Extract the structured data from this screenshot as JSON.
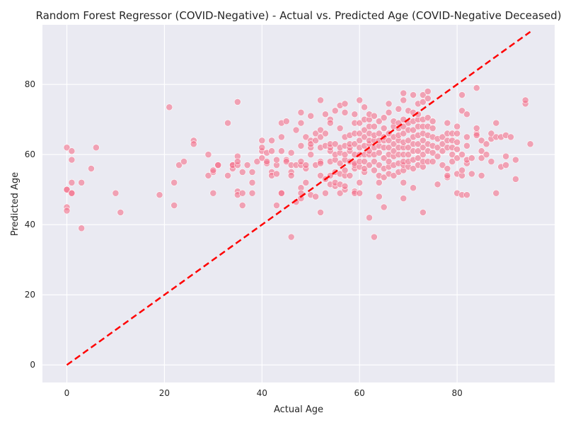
{
  "chart_data": {
    "type": "scatter",
    "title": "Random Forest Regressor (COVID-Negative) - Actual vs. Predicted Age (COVID-Negative Deceased)",
    "xlabel": "Actual Age",
    "ylabel": "Predicted Age",
    "xlim": [
      -5,
      100
    ],
    "ylim": [
      -5,
      97
    ],
    "xticks": [
      0,
      20,
      40,
      60,
      80
    ],
    "yticks": [
      0,
      20,
      40,
      60,
      80
    ],
    "grid": true,
    "background": "#eaeaf2",
    "point_color": "#f4708a",
    "reference_line": {
      "x": [
        0,
        95
      ],
      "y": [
        0,
        95
      ],
      "color": "#ff0000",
      "style": "dashed"
    },
    "points": [
      [
        0,
        62
      ],
      [
        0,
        50
      ],
      [
        0,
        50
      ],
      [
        0,
        45
      ],
      [
        0,
        44
      ],
      [
        1,
        61
      ],
      [
        1,
        58.5
      ],
      [
        1,
        52
      ],
      [
        1,
        49
      ],
      [
        1,
        49
      ],
      [
        3,
        52
      ],
      [
        3,
        39
      ],
      [
        5,
        56
      ],
      [
        6,
        62
      ],
      [
        10,
        49
      ],
      [
        11,
        43.5
      ],
      [
        19,
        48.5
      ],
      [
        21,
        73.5
      ],
      [
        22,
        52
      ],
      [
        22,
        45.5
      ],
      [
        23,
        57
      ],
      [
        24,
        58
      ],
      [
        26,
        64
      ],
      [
        26,
        63
      ],
      [
        29,
        54
      ],
      [
        29,
        60
      ],
      [
        30,
        55
      ],
      [
        30,
        49
      ],
      [
        30,
        55.5
      ],
      [
        31,
        57
      ],
      [
        31,
        57
      ],
      [
        33,
        69
      ],
      [
        33,
        54
      ],
      [
        34,
        57
      ],
      [
        34,
        56
      ],
      [
        34,
        57
      ],
      [
        35,
        75
      ],
      [
        35,
        59.5
      ],
      [
        35,
        49.5
      ],
      [
        35,
        48.5
      ],
      [
        35,
        57
      ],
      [
        35,
        58
      ],
      [
        36,
        45.5
      ],
      [
        36,
        55
      ],
      [
        36,
        49
      ],
      [
        37,
        57
      ],
      [
        38,
        52
      ],
      [
        38,
        49
      ],
      [
        38,
        55
      ],
      [
        39,
        58
      ],
      [
        40,
        59
      ],
      [
        40,
        61
      ],
      [
        40,
        64
      ],
      [
        40,
        62
      ],
      [
        41,
        57.5
      ],
      [
        41,
        58
      ],
      [
        41,
        60.5
      ],
      [
        42,
        61
      ],
      [
        42,
        55
      ],
      [
        42,
        54
      ],
      [
        42,
        64
      ],
      [
        43,
        45.5
      ],
      [
        43,
        54.5
      ],
      [
        43,
        57
      ],
      [
        43,
        58.5
      ],
      [
        44,
        49
      ],
      [
        44,
        49
      ],
      [
        44,
        61
      ],
      [
        44,
        65
      ],
      [
        44,
        69
      ],
      [
        45,
        58.5
      ],
      [
        45,
        69.5
      ],
      [
        45,
        58
      ],
      [
        46,
        36.5
      ],
      [
        46,
        55
      ],
      [
        46,
        57
      ],
      [
        46,
        60.5
      ],
      [
        46,
        54
      ],
      [
        47,
        67
      ],
      [
        47,
        57
      ],
      [
        47,
        46.5
      ],
      [
        48,
        57
      ],
      [
        48,
        58
      ],
      [
        48,
        47.5
      ],
      [
        48,
        50.5
      ],
      [
        48,
        49
      ],
      [
        48,
        62.5
      ],
      [
        48,
        69
      ],
      [
        48,
        72
      ],
      [
        49,
        56
      ],
      [
        49,
        65
      ],
      [
        49,
        52
      ],
      [
        49,
        57
      ],
      [
        50,
        71
      ],
      [
        50,
        62
      ],
      [
        50,
        48.5
      ],
      [
        50,
        64
      ],
      [
        50,
        63
      ],
      [
        50,
        60
      ],
      [
        51,
        57
      ],
      [
        51,
        64
      ],
      [
        51,
        66
      ],
      [
        51,
        48
      ],
      [
        52,
        54
      ],
      [
        52,
        43.5
      ],
      [
        52,
        58
      ],
      [
        52,
        62
      ],
      [
        52,
        67
      ],
      [
        52,
        65
      ],
      [
        52,
        75.5
      ],
      [
        52,
        57.5
      ],
      [
        53,
        66
      ],
      [
        53,
        71.5
      ],
      [
        53,
        62.5
      ],
      [
        53,
        49
      ],
      [
        53,
        53
      ],
      [
        54,
        51.5
      ],
      [
        54,
        54
      ],
      [
        54,
        58
      ],
      [
        54,
        61
      ],
      [
        54,
        62
      ],
      [
        54,
        70
      ],
      [
        54,
        69
      ],
      [
        54,
        63
      ],
      [
        55,
        51
      ],
      [
        55,
        55
      ],
      [
        55,
        58.5
      ],
      [
        55,
        60
      ],
      [
        55,
        63
      ],
      [
        55,
        72.5
      ],
      [
        55,
        52
      ],
      [
        56,
        51.5
      ],
      [
        56,
        49
      ],
      [
        56,
        54.5
      ],
      [
        56,
        57.5
      ],
      [
        56,
        60.5
      ],
      [
        56,
        62
      ],
      [
        56,
        67.5
      ],
      [
        56,
        74
      ],
      [
        57,
        50
      ],
      [
        57,
        51
      ],
      [
        57,
        54
      ],
      [
        57,
        55.5
      ],
      [
        57,
        58.5
      ],
      [
        57,
        60
      ],
      [
        57,
        62.5
      ],
      [
        57,
        65
      ],
      [
        57,
        72
      ],
      [
        57,
        74.5
      ],
      [
        58,
        54
      ],
      [
        58,
        58
      ],
      [
        58,
        61
      ],
      [
        58,
        62
      ],
      [
        58,
        63
      ],
      [
        58,
        65.5
      ],
      [
        59,
        49.5
      ],
      [
        59,
        56
      ],
      [
        59,
        57
      ],
      [
        59,
        57.5
      ],
      [
        59,
        60
      ],
      [
        59,
        63
      ],
      [
        59,
        66
      ],
      [
        59,
        69
      ],
      [
        59,
        71.5
      ],
      [
        59,
        49
      ],
      [
        60,
        49
      ],
      [
        60,
        52
      ],
      [
        60,
        56.5
      ],
      [
        60,
        58
      ],
      [
        60,
        60
      ],
      [
        60,
        62
      ],
      [
        60,
        64
      ],
      [
        60,
        66
      ],
      [
        60,
        69
      ],
      [
        60,
        75.5
      ],
      [
        61,
        55
      ],
      [
        61,
        56
      ],
      [
        61,
        58
      ],
      [
        61,
        60
      ],
      [
        61,
        62.5
      ],
      [
        61,
        65
      ],
      [
        61,
        67
      ],
      [
        61,
        70
      ],
      [
        61,
        73.5
      ],
      [
        62,
        42
      ],
      [
        62,
        57
      ],
      [
        62,
        60
      ],
      [
        62,
        61
      ],
      [
        62,
        63
      ],
      [
        62,
        64
      ],
      [
        62,
        66
      ],
      [
        62,
        68
      ],
      [
        62,
        70
      ],
      [
        62,
        71.5
      ],
      [
        63,
        36.5
      ],
      [
        63,
        55.5
      ],
      [
        63,
        58
      ],
      [
        63,
        60
      ],
      [
        63,
        62
      ],
      [
        63,
        64
      ],
      [
        63,
        65.5
      ],
      [
        63,
        68
      ],
      [
        63,
        71
      ],
      [
        64,
        48
      ],
      [
        64,
        52
      ],
      [
        64,
        54
      ],
      [
        64,
        57
      ],
      [
        64,
        60.5
      ],
      [
        64,
        62.5
      ],
      [
        64,
        64
      ],
      [
        64,
        66
      ],
      [
        64,
        69.5
      ],
      [
        65,
        45
      ],
      [
        65,
        53.5
      ],
      [
        65,
        56
      ],
      [
        65,
        59
      ],
      [
        65,
        62
      ],
      [
        65,
        64
      ],
      [
        65,
        65
      ],
      [
        65,
        67.5
      ],
      [
        65,
        70.5
      ],
      [
        66,
        54.5
      ],
      [
        66,
        56.5
      ],
      [
        66,
        58
      ],
      [
        66,
        60
      ],
      [
        66,
        62
      ],
      [
        66,
        64
      ],
      [
        66,
        66
      ],
      [
        66,
        72
      ],
      [
        66,
        74.5
      ],
      [
        67,
        54
      ],
      [
        67,
        57
      ],
      [
        67,
        59.5
      ],
      [
        67,
        61
      ],
      [
        67,
        63
      ],
      [
        67,
        65
      ],
      [
        67,
        68
      ],
      [
        67,
        69.5
      ],
      [
        68,
        55
      ],
      [
        68,
        57.5
      ],
      [
        68,
        60
      ],
      [
        68,
        62
      ],
      [
        68,
        64
      ],
      [
        68,
        65.5
      ],
      [
        68,
        67.5
      ],
      [
        68,
        69
      ],
      [
        68,
        73
      ],
      [
        69,
        47.5
      ],
      [
        69,
        52
      ],
      [
        69,
        55.5
      ],
      [
        69,
        57
      ],
      [
        69,
        58
      ],
      [
        69,
        60
      ],
      [
        69,
        62
      ],
      [
        69,
        63.5
      ],
      [
        69,
        66
      ],
      [
        69,
        68
      ],
      [
        69,
        70
      ],
      [
        69,
        75.5
      ],
      [
        69,
        77.5
      ],
      [
        70,
        56.5
      ],
      [
        70,
        58
      ],
      [
        70,
        60
      ],
      [
        70,
        62
      ],
      [
        70,
        64
      ],
      [
        70,
        67
      ],
      [
        70,
        69
      ],
      [
        70,
        72.5
      ],
      [
        71,
        50.5
      ],
      [
        71,
        56
      ],
      [
        71,
        58.5
      ],
      [
        71,
        61
      ],
      [
        71,
        63
      ],
      [
        71,
        65
      ],
      [
        71,
        67
      ],
      [
        71,
        69.5
      ],
      [
        71,
        72
      ],
      [
        71,
        77
      ],
      [
        72,
        57
      ],
      [
        72,
        59
      ],
      [
        72,
        61
      ],
      [
        72,
        63
      ],
      [
        72,
        65.5
      ],
      [
        72,
        68
      ],
      [
        72,
        70
      ],
      [
        72,
        74.5
      ],
      [
        72,
        71.5
      ],
      [
        73,
        43.5
      ],
      [
        73,
        56.5
      ],
      [
        73,
        58
      ],
      [
        73,
        60
      ],
      [
        73,
        62
      ],
      [
        73,
        64
      ],
      [
        73,
        66
      ],
      [
        73,
        68
      ],
      [
        73,
        70
      ],
      [
        73,
        75
      ],
      [
        73,
        77
      ],
      [
        74,
        58
      ],
      [
        74,
        61
      ],
      [
        74,
        63
      ],
      [
        74,
        65.5
      ],
      [
        74,
        68
      ],
      [
        74,
        70.5
      ],
      [
        74,
        76
      ],
      [
        74,
        78
      ],
      [
        75,
        58
      ],
      [
        75,
        60.5
      ],
      [
        75,
        62.5
      ],
      [
        75,
        65
      ],
      [
        75,
        67.5
      ],
      [
        75,
        69.5
      ],
      [
        76,
        51.5
      ],
      [
        76,
        59.5
      ],
      [
        76,
        62
      ],
      [
        76,
        64.5
      ],
      [
        77,
        57
      ],
      [
        77,
        61
      ],
      [
        77,
        63
      ],
      [
        77,
        65
      ],
      [
        78,
        53.5
      ],
      [
        78,
        56
      ],
      [
        78,
        62
      ],
      [
        78,
        64
      ],
      [
        78,
        66
      ],
      [
        78,
        69
      ],
      [
        78,
        54
      ],
      [
        79,
        58
      ],
      [
        79,
        60
      ],
      [
        79,
        62
      ],
      [
        79,
        64
      ],
      [
        79,
        66
      ],
      [
        80,
        49
      ],
      [
        80,
        54.5
      ],
      [
        80,
        59
      ],
      [
        80,
        61.5
      ],
      [
        80,
        63.5
      ],
      [
        80,
        66
      ],
      [
        80,
        68
      ],
      [
        81,
        48.5
      ],
      [
        81,
        54
      ],
      [
        81,
        55.5
      ],
      [
        81,
        60
      ],
      [
        81,
        72.5
      ],
      [
        81,
        77
      ],
      [
        82,
        48.5
      ],
      [
        82,
        57.5
      ],
      [
        82,
        58.5
      ],
      [
        82,
        62.5
      ],
      [
        82,
        65
      ],
      [
        82,
        71.5
      ],
      [
        83,
        54.5
      ],
      [
        83,
        59
      ],
      [
        84,
        66
      ],
      [
        84,
        67.5
      ],
      [
        84,
        79
      ],
      [
        84,
        65.5
      ],
      [
        85,
        54
      ],
      [
        85,
        59
      ],
      [
        85,
        61
      ],
      [
        85,
        64
      ],
      [
        86,
        60
      ],
      [
        86,
        63
      ],
      [
        87,
        58
      ],
      [
        87,
        64.5
      ],
      [
        87,
        66
      ],
      [
        88,
        49
      ],
      [
        88,
        65
      ],
      [
        88,
        69
      ],
      [
        89,
        56.5
      ],
      [
        89,
        65
      ],
      [
        90,
        57
      ],
      [
        90,
        59.5
      ],
      [
        90,
        65.5
      ],
      [
        91,
        65
      ],
      [
        92,
        53
      ],
      [
        92,
        58.5
      ],
      [
        94,
        74.5
      ],
      [
        94,
        75.5
      ],
      [
        95,
        63
      ]
    ]
  }
}
